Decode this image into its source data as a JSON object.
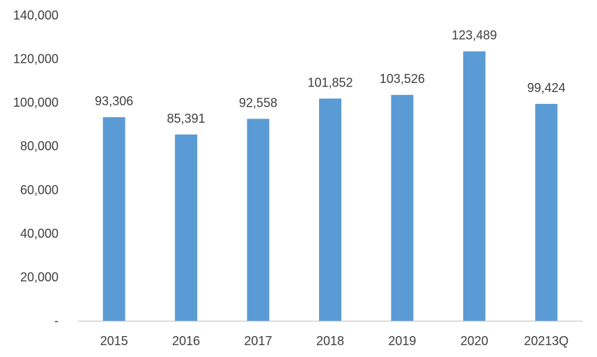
{
  "chart_data": {
    "type": "bar",
    "categories": [
      "2015",
      "2016",
      "2017",
      "2018",
      "2019",
      "2020",
      "20213Q"
    ],
    "values": [
      93306,
      85391,
      92558,
      101852,
      103526,
      123489,
      99424
    ],
    "data_labels": [
      "93,306",
      "85,391",
      "92,558",
      "101,852",
      "103,526",
      "123,489",
      "99,424"
    ],
    "y_ticks": [
      {
        "value": 0,
        "label": "-"
      },
      {
        "value": 20000,
        "label": "20,000"
      },
      {
        "value": 40000,
        "label": "40,000"
      },
      {
        "value": 60000,
        "label": "60,000"
      },
      {
        "value": 80000,
        "label": "80,000"
      },
      {
        "value": 100000,
        "label": "100,000"
      },
      {
        "value": 120000,
        "label": "120,000"
      },
      {
        "value": 140000,
        "label": "140,000"
      }
    ],
    "ylim": [
      0,
      140000
    ],
    "title": "",
    "xlabel": "",
    "ylabel": "",
    "grid": false,
    "legend": "none",
    "colors": {
      "bar": "#5b9bd5",
      "axis": "#bfbfbf",
      "text": "#404040"
    }
  }
}
